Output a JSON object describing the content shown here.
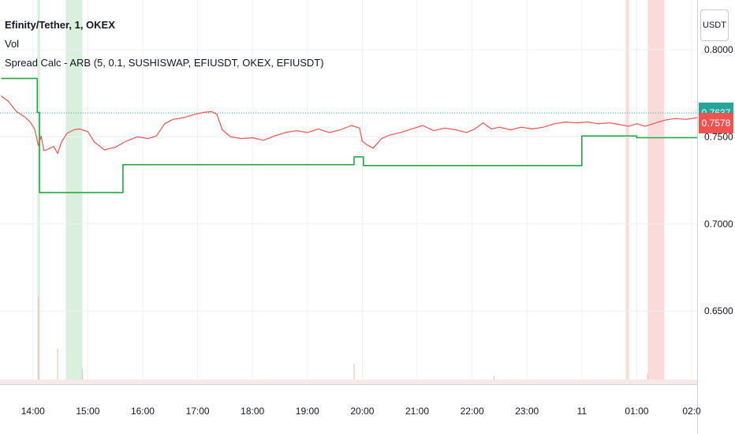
{
  "legend": {
    "title": "Efinity/Tether, 1, OKEX",
    "volume_label": "Vol",
    "indicator_label": "Spread Calc - ARB (5, 0.1, SUSHISWAP, EFIUSDT, OKEX, EFIUSDT)"
  },
  "unit_button": "USDT",
  "price_tags": {
    "last_price": "0.7637",
    "spread_price": "0.7578",
    "last_price_color": "#26a69a",
    "spread_price_color": "#ef5350"
  },
  "colors": {
    "price_line": "#ef5350",
    "spread_line": "#26a641",
    "dotted_line": "#26a69a",
    "green_band": "#d8f0dc",
    "red_band": "#fbdada",
    "grid": "#eef0f3"
  },
  "chart_data": {
    "type": "line",
    "x_axis_labels": [
      "14:00",
      "15:00",
      "16:00",
      "17:00",
      "18:00",
      "19:00",
      "20:00",
      "21:00",
      "22:00",
      "23:00",
      "11",
      "01:00",
      "02:0"
    ],
    "y_axis_labels": [
      "0.8000",
      "0.7500",
      "0.7000",
      "0.6500"
    ],
    "y_ticks": [
      0.8,
      0.75,
      0.7,
      0.65
    ],
    "ylim": [
      0.608,
      0.8285
    ],
    "xlim": [
      13.4,
      26.1
    ],
    "dotted_level": 0.7637,
    "series": [
      {
        "color": "#ef5350",
        "points": [
          [
            13.42,
            0.7735
          ],
          [
            13.55,
            0.7705
          ],
          [
            13.7,
            0.7645
          ],
          [
            13.85,
            0.7615
          ],
          [
            13.95,
            0.7585
          ],
          [
            14.03,
            0.7545
          ],
          [
            14.1,
            0.745
          ],
          [
            14.15,
            0.7505
          ],
          [
            14.2,
            0.742
          ],
          [
            14.28,
            0.743
          ],
          [
            14.38,
            0.7445
          ],
          [
            14.45,
            0.7405
          ],
          [
            14.52,
            0.747
          ],
          [
            14.62,
            0.752
          ],
          [
            14.75,
            0.754
          ],
          [
            14.85,
            0.7545
          ],
          [
            15.0,
            0.753
          ],
          [
            15.12,
            0.747
          ],
          [
            15.3,
            0.7425
          ],
          [
            15.5,
            0.744
          ],
          [
            15.7,
            0.7475
          ],
          [
            15.9,
            0.75
          ],
          [
            16.1,
            0.749
          ],
          [
            16.25,
            0.7505
          ],
          [
            16.4,
            0.7575
          ],
          [
            16.55,
            0.76
          ],
          [
            16.75,
            0.761
          ],
          [
            16.9,
            0.7625
          ],
          [
            17.1,
            0.764
          ],
          [
            17.25,
            0.7645
          ],
          [
            17.35,
            0.763
          ],
          [
            17.45,
            0.754
          ],
          [
            17.6,
            0.75
          ],
          [
            17.8,
            0.749
          ],
          [
            18.0,
            0.7495
          ],
          [
            18.2,
            0.748
          ],
          [
            18.4,
            0.7505
          ],
          [
            18.6,
            0.7525
          ],
          [
            18.8,
            0.7535
          ],
          [
            19.0,
            0.7525
          ],
          [
            19.2,
            0.7545
          ],
          [
            19.4,
            0.7525
          ],
          [
            19.6,
            0.754
          ],
          [
            19.8,
            0.7565
          ],
          [
            19.95,
            0.755
          ],
          [
            20.0,
            0.7475
          ],
          [
            20.08,
            0.7455
          ],
          [
            20.2,
            0.7435
          ],
          [
            20.35,
            0.749
          ],
          [
            20.5,
            0.751
          ],
          [
            20.7,
            0.7525
          ],
          [
            20.9,
            0.7545
          ],
          [
            21.1,
            0.7565
          ],
          [
            21.3,
            0.7535
          ],
          [
            21.5,
            0.755
          ],
          [
            21.7,
            0.754
          ],
          [
            21.9,
            0.7525
          ],
          [
            22.05,
            0.7545
          ],
          [
            22.2,
            0.758
          ],
          [
            22.35,
            0.7545
          ],
          [
            22.5,
            0.7555
          ],
          [
            22.7,
            0.754
          ],
          [
            22.9,
            0.7555
          ],
          [
            23.1,
            0.7545
          ],
          [
            23.3,
            0.7555
          ],
          [
            23.5,
            0.7575
          ],
          [
            23.7,
            0.7585
          ],
          [
            23.9,
            0.758
          ],
          [
            24.1,
            0.7585
          ],
          [
            24.3,
            0.7575
          ],
          [
            24.5,
            0.758
          ],
          [
            24.7,
            0.757
          ],
          [
            24.85,
            0.756
          ],
          [
            25.0,
            0.7575
          ],
          [
            25.15,
            0.756
          ],
          [
            25.3,
            0.7575
          ],
          [
            25.5,
            0.7595
          ],
          [
            25.7,
            0.7605
          ],
          [
            25.9,
            0.76
          ],
          [
            26.1,
            0.761
          ]
        ]
      },
      {
        "color": "#26a641",
        "step": true,
        "points": [
          [
            13.42,
            0.7835
          ],
          [
            14.08,
            0.7835
          ],
          [
            14.08,
            0.764
          ],
          [
            14.12,
            0.764
          ],
          [
            14.12,
            0.718
          ],
          [
            15.64,
            0.718
          ],
          [
            15.64,
            0.734
          ],
          [
            19.85,
            0.734
          ],
          [
            19.85,
            0.7385
          ],
          [
            20.02,
            0.7385
          ],
          [
            20.02,
            0.7335
          ],
          [
            24.0,
            0.7335
          ],
          [
            24.0,
            0.7505
          ],
          [
            25.0,
            0.7505
          ],
          [
            25.0,
            0.7495
          ],
          [
            26.1,
            0.7495
          ]
        ]
      }
    ],
    "highlight_bands": [
      {
        "x0": 14.08,
        "x1": 14.13,
        "color": "#d8f0dc"
      },
      {
        "x0": 14.6,
        "x1": 14.9,
        "color": "#d8f0dc"
      },
      {
        "x0": 24.8,
        "x1": 24.86,
        "color": "#fbdada"
      },
      {
        "x0": 25.2,
        "x1": 25.5,
        "color": "#fbdada"
      }
    ],
    "volume_spikes": [
      {
        "x": 14.1,
        "v": 0.85
      },
      {
        "x": 14.45,
        "v": 0.35
      },
      {
        "x": 14.9,
        "v": 0.15
      },
      {
        "x": 19.85,
        "v": 0.2
      },
      {
        "x": 22.4,
        "v": 0.08
      },
      {
        "x": 25.2,
        "v": 0.1
      }
    ]
  }
}
